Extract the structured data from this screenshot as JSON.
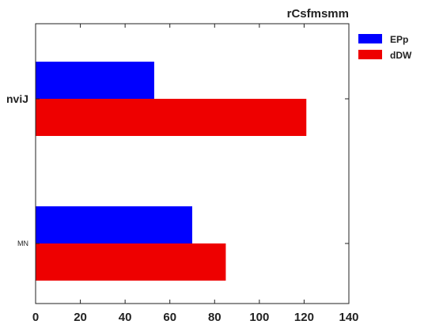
{
  "chart_data": {
    "type": "bar",
    "orientation": "horizontal",
    "title": "rCsfmsmm",
    "xlabel": "",
    "ylabel": "",
    "categories": [
      "nviJ",
      "MN"
    ],
    "series": [
      {
        "name": "EPp",
        "color": "#0000ff",
        "values": [
          53,
          70
        ]
      },
      {
        "name": "dDW",
        "color": "#ee0000",
        "values": [
          121,
          85
        ]
      }
    ],
    "xlim": [
      0,
      140
    ],
    "xticks": [
      0,
      20,
      40,
      60,
      80,
      100,
      120,
      140
    ],
    "grid": false,
    "legend_position": "outside-top-right"
  }
}
